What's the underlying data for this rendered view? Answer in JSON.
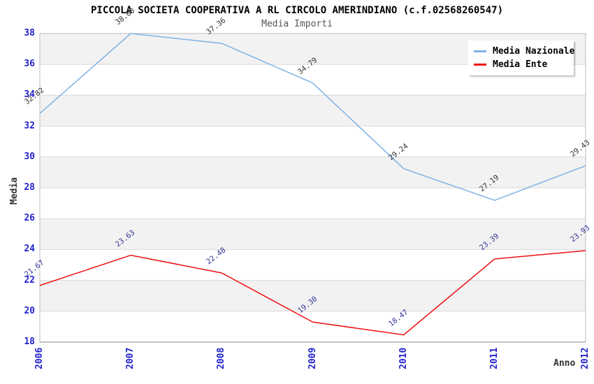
{
  "header": {
    "title": "PICCOLA SOCIETA COOPERATIVA A RL CIRCOLO AMERINDIANO (c.f.02568260547)",
    "subtitle": "Media Importi"
  },
  "chart_data": {
    "type": "line",
    "x": [
      2006,
      2007,
      2008,
      2009,
      2010,
      2011,
      2012
    ],
    "xlabel": "Anno",
    "ylabel": "Media",
    "ylim": [
      18,
      38
    ],
    "ytick_step": 2,
    "yticks": [
      18,
      20,
      22,
      24,
      26,
      28,
      30,
      32,
      34,
      36,
      38
    ],
    "grid": true,
    "banded_background": true,
    "legend_position": "top-right",
    "value_label_format": "2-decimals",
    "series": [
      {
        "name": "Media Nazionale",
        "color": "#7fb2e5",
        "label_color": "#333333",
        "values": [
          32.82,
          38.0,
          37.36,
          34.79,
          29.24,
          27.19,
          29.43
        ]
      },
      {
        "name": "Media Ente",
        "color": "#ee1111",
        "label_color": "#333399",
        "values": [
          21.67,
          23.63,
          22.48,
          19.3,
          18.47,
          23.39,
          23.93
        ]
      }
    ]
  },
  "colors": {
    "tick_label": "#2222cc",
    "band_gray": "#f2f2f2",
    "gridline": "#d9d9d9",
    "plot_border": "#bdbdbd",
    "axis_line": "#8a8a8a",
    "subtitle": "#555555"
  }
}
